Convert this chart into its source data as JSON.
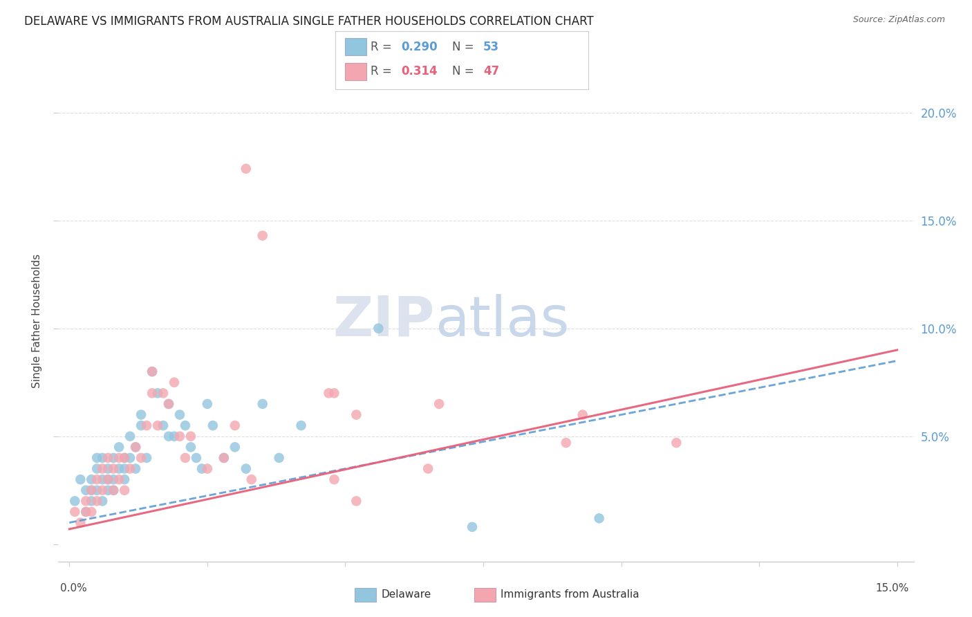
{
  "title": "DELAWARE VS IMMIGRANTS FROM AUSTRALIA SINGLE FATHER HOUSEHOLDS CORRELATION CHART",
  "source": "Source: ZipAtlas.com",
  "ylabel": "Single Father Households",
  "xlim": [
    0.0,
    0.15
  ],
  "ylim": [
    0.0,
    0.21
  ],
  "legend_r1": "0.290",
  "legend_n1": "53",
  "legend_r2": "0.314",
  "legend_n2": "47",
  "color_blue": "#92c5de",
  "color_pink": "#f4a6b0",
  "color_blue_line": "#5b9bd5",
  "color_pink_line": "#e8607a",
  "watermark_zip": "ZIP",
  "watermark_atlas": "atlas",
  "blue_scatter_x": [
    0.001,
    0.002,
    0.003,
    0.003,
    0.004,
    0.004,
    0.004,
    0.005,
    0.005,
    0.005,
    0.006,
    0.006,
    0.006,
    0.007,
    0.007,
    0.007,
    0.008,
    0.008,
    0.008,
    0.009,
    0.009,
    0.01,
    0.01,
    0.01,
    0.011,
    0.011,
    0.012,
    0.012,
    0.013,
    0.013,
    0.014,
    0.015,
    0.016,
    0.017,
    0.018,
    0.018,
    0.019,
    0.02,
    0.021,
    0.022,
    0.023,
    0.024,
    0.025,
    0.026,
    0.028,
    0.03,
    0.032,
    0.035,
    0.038,
    0.042,
    0.056,
    0.073,
    0.096
  ],
  "blue_scatter_y": [
    0.02,
    0.03,
    0.015,
    0.025,
    0.02,
    0.03,
    0.025,
    0.035,
    0.025,
    0.04,
    0.02,
    0.03,
    0.04,
    0.025,
    0.035,
    0.03,
    0.03,
    0.04,
    0.025,
    0.035,
    0.045,
    0.03,
    0.04,
    0.035,
    0.05,
    0.04,
    0.045,
    0.035,
    0.06,
    0.055,
    0.04,
    0.08,
    0.07,
    0.055,
    0.05,
    0.065,
    0.05,
    0.06,
    0.055,
    0.045,
    0.04,
    0.035,
    0.065,
    0.055,
    0.04,
    0.045,
    0.035,
    0.065,
    0.04,
    0.055,
    0.1,
    0.008,
    0.012
  ],
  "pink_scatter_x": [
    0.001,
    0.002,
    0.003,
    0.003,
    0.004,
    0.004,
    0.005,
    0.005,
    0.006,
    0.006,
    0.007,
    0.007,
    0.008,
    0.008,
    0.009,
    0.009,
    0.01,
    0.01,
    0.011,
    0.012,
    0.013,
    0.014,
    0.015,
    0.015,
    0.016,
    0.017,
    0.018,
    0.019,
    0.02,
    0.021,
    0.022,
    0.025,
    0.028,
    0.03,
    0.033,
    0.047,
    0.052,
    0.067,
    0.093,
    0.11,
    0.032,
    0.035,
    0.048,
    0.048,
    0.052,
    0.065,
    0.09
  ],
  "pink_scatter_y": [
    0.015,
    0.01,
    0.02,
    0.015,
    0.025,
    0.015,
    0.02,
    0.03,
    0.025,
    0.035,
    0.03,
    0.04,
    0.025,
    0.035,
    0.04,
    0.03,
    0.025,
    0.04,
    0.035,
    0.045,
    0.04,
    0.055,
    0.07,
    0.08,
    0.055,
    0.07,
    0.065,
    0.075,
    0.05,
    0.04,
    0.05,
    0.035,
    0.04,
    0.055,
    0.03,
    0.07,
    0.06,
    0.065,
    0.06,
    0.047,
    0.174,
    0.143,
    0.03,
    0.07,
    0.02,
    0.035,
    0.047
  ],
  "blue_line_x0": 0.0,
  "blue_line_x1": 0.15,
  "blue_line_y0": 0.01,
  "blue_line_y1": 0.085,
  "pink_line_x0": 0.0,
  "pink_line_x1": 0.15,
  "pink_line_y0": 0.007,
  "pink_line_y1": 0.09,
  "yticks": [
    0.0,
    0.05,
    0.1,
    0.15,
    0.2
  ],
  "xticks": [
    0.0,
    0.025,
    0.05,
    0.075,
    0.1,
    0.125,
    0.15
  ],
  "grid_color": "#dddddd",
  "spine_color": "#cccccc"
}
